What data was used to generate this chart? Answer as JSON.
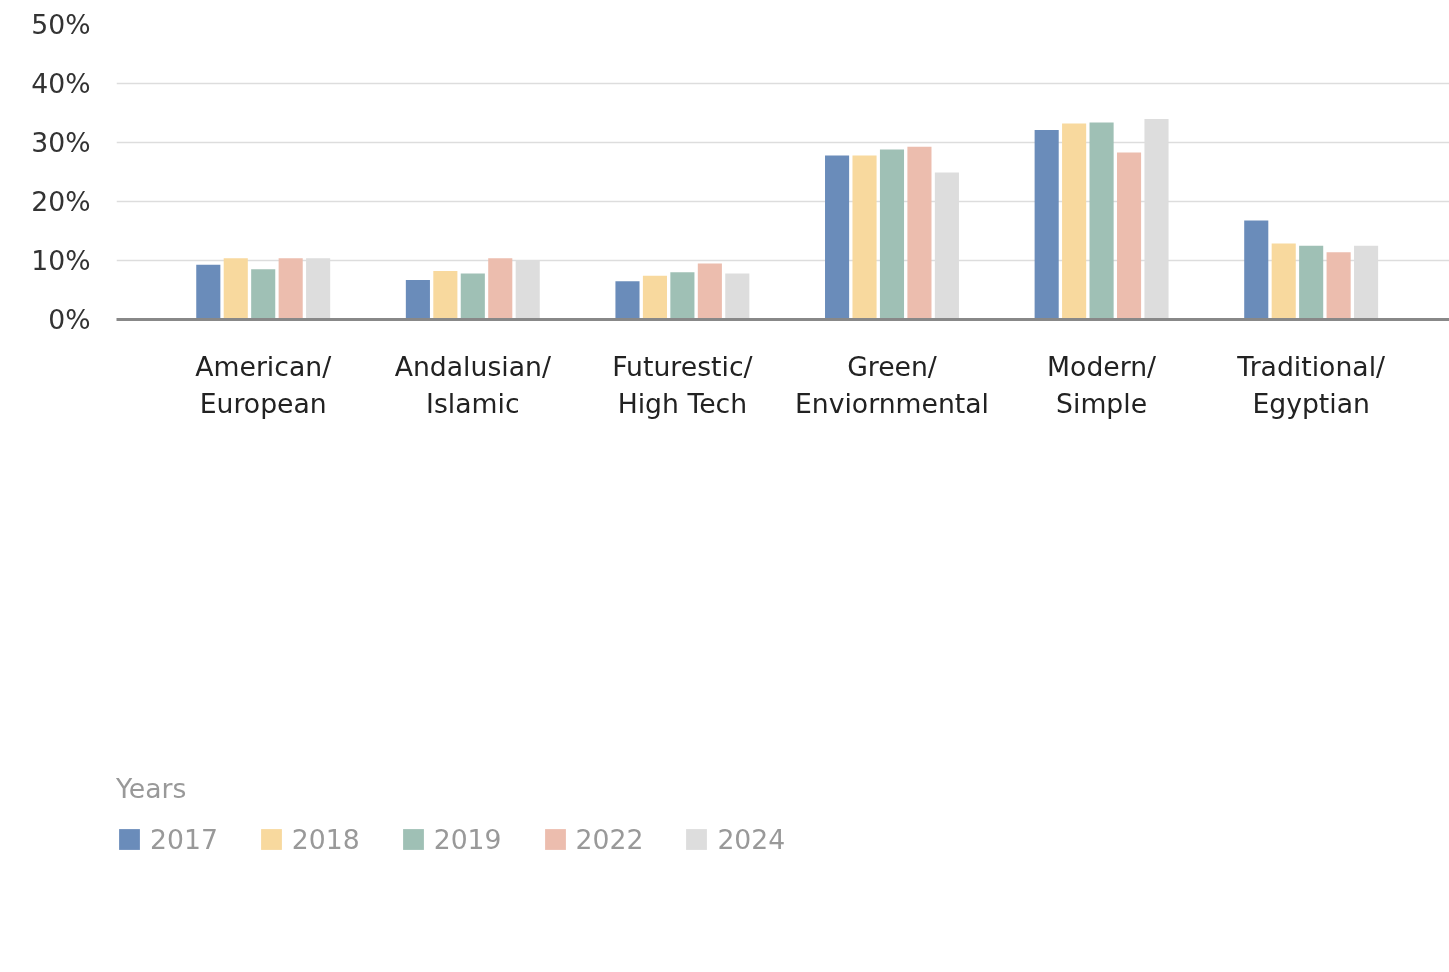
{
  "chart_data": {
    "type": "bar",
    "categories": [
      "American/\nEuropean",
      "Andalusian/\nIslamic",
      "Futurestic/\nHigh Tech",
      "Green/\nEnviornmental",
      "Modern/\nSimple",
      "Traditional/\nEgyptian"
    ],
    "series": [
      {
        "name": "2017",
        "color": "#6a8cba",
        "values": [
          9.3,
          6.7,
          6.5,
          27.8,
          32.1,
          16.8
        ]
      },
      {
        "name": "2018",
        "color": "#f8d99e",
        "values": [
          10.4,
          8.2,
          7.4,
          27.8,
          33.2,
          12.9
        ]
      },
      {
        "name": "2019",
        "color": "#9fc0b5",
        "values": [
          8.5,
          7.8,
          8.0,
          28.8,
          33.4,
          12.5
        ]
      },
      {
        "name": "2022",
        "color": "#ecbdae",
        "values": [
          10.4,
          10.4,
          9.5,
          29.3,
          28.3,
          11.4
        ]
      },
      {
        "name": "2024",
        "color": "#dddddd",
        "values": [
          10.4,
          10.0,
          7.8,
          24.9,
          34.0,
          12.5
        ]
      }
    ],
    "legend_title": "Years",
    "ylim": [
      0,
      50
    ],
    "yticks": [
      {
        "value": 0,
        "label": "0%"
      },
      {
        "value": 10,
        "label": "10%"
      },
      {
        "value": 20,
        "label": "20%"
      },
      {
        "value": 30,
        "label": "30%"
      },
      {
        "value": 40,
        "label": "40%"
      },
      {
        "value": 50,
        "label": "50%"
      }
    ],
    "grid": "y",
    "legend": "bottom left"
  }
}
